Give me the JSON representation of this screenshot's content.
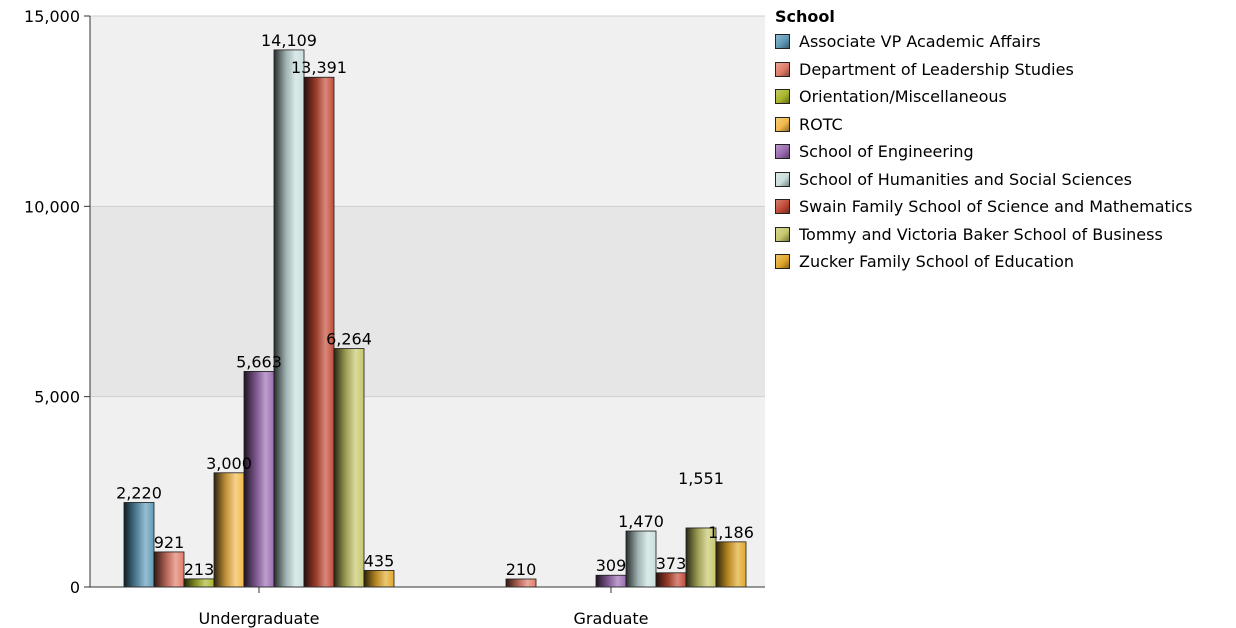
{
  "chart_data": {
    "type": "bar",
    "title": "",
    "xlabel": "",
    "ylabel": "",
    "categories": [
      "Undergraduate",
      "Graduate"
    ],
    "ylim": [
      0,
      15000
    ],
    "yticks": [
      0,
      5000,
      10000,
      15000
    ],
    "ytick_labels": [
      "0",
      "5,000",
      "10,000",
      "15,000"
    ],
    "grid": true,
    "legend_title": "School",
    "legend_position": "right",
    "series": [
      {
        "name": "Associate VP Academic Affairs",
        "color": "#5f9ab8",
        "values": [
          2220,
          null
        ],
        "labels": [
          "2,220",
          ""
        ]
      },
      {
        "name": "Department of Leadership Studies",
        "color": "#e07b68",
        "values": [
          921,
          210
        ],
        "labels": [
          "921",
          "210"
        ]
      },
      {
        "name": "Orientation/Miscellaneous",
        "color": "#a9b52a",
        "values": [
          213,
          null
        ],
        "labels": [
          "213",
          ""
        ]
      },
      {
        "name": "ROTC",
        "color": "#f2b84a",
        "values": [
          3000,
          null
        ],
        "labels": [
          "3,000",
          ""
        ]
      },
      {
        "name": "School of Engineering",
        "color": "#9a6bb0",
        "values": [
          5663,
          309
        ],
        "labels": [
          "5,663",
          "309"
        ]
      },
      {
        "name": "School of Humanities and Social Sciences",
        "color": "#c8dedd",
        "values": [
          14109,
          1470
        ],
        "labels": [
          "14,109",
          "1,470"
        ]
      },
      {
        "name": "Swain Family School of Science and Mathematics",
        "color": "#c24a36",
        "values": [
          13391,
          373
        ],
        "labels": [
          "13,391",
          "373"
        ]
      },
      {
        "name": "Tommy and Victoria Baker School of Business",
        "color": "#c6c66a",
        "values": [
          6264,
          1551
        ],
        "labels": [
          "6,264",
          "1,551"
        ]
      },
      {
        "name": "Zucker Family School of Education",
        "color": "#e2a82a",
        "values": [
          435,
          1186
        ],
        "labels": [
          "435",
          "1,186"
        ]
      }
    ]
  }
}
